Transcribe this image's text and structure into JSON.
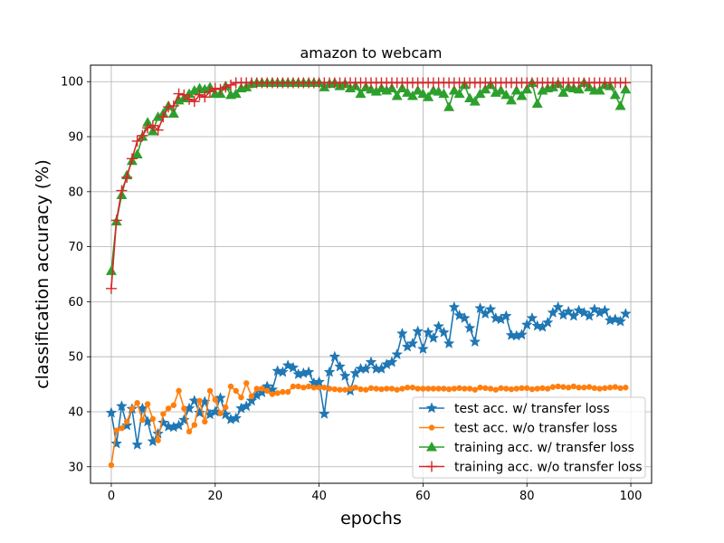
{
  "chart_data": {
    "type": "line",
    "title": "amazon to webcam",
    "xlabel": "epochs",
    "ylabel": "classification accuracy (%)",
    "xlim": [
      -4,
      104
    ],
    "ylim": [
      27,
      103
    ],
    "xticks": [
      0,
      20,
      40,
      60,
      80,
      100
    ],
    "yticks": [
      30,
      40,
      50,
      60,
      70,
      80,
      90,
      100
    ],
    "grid": true,
    "legend_position": "lower-right",
    "series": [
      {
        "name": "test acc. w/ transfer loss",
        "color": "#1f77b4",
        "marker": "star",
        "values": [
          39.8,
          34.2,
          41.0,
          37.5,
          40.5,
          34.0,
          40.6,
          38.2,
          34.6,
          36.0,
          38.0,
          37.3,
          37.2,
          37.5,
          38.5,
          40.6,
          42.0,
          39.8,
          41.8,
          39.5,
          40.0,
          42.5,
          39.5,
          38.6,
          38.8,
          40.6,
          41.0,
          42.0,
          43.0,
          43.5,
          44.6,
          44.0,
          47.4,
          47.2,
          48.4,
          48.0,
          46.8,
          47.0,
          47.2,
          45.2,
          45.4,
          39.6,
          47.2,
          50.0,
          48.2,
          46.5,
          43.8,
          47.0,
          47.8,
          47.8,
          49.0,
          47.8,
          47.8,
          48.6,
          49.0,
          50.4,
          54.2,
          51.8,
          52.4,
          54.6,
          51.4,
          54.4,
          53.4,
          55.5,
          54.4,
          52.4,
          59.0,
          57.5,
          57.0,
          55.2,
          52.7,
          58.8,
          57.8,
          58.6,
          57.0,
          56.8,
          57.4,
          53.9,
          53.8,
          54.0,
          55.8,
          57.0,
          55.6,
          55.4,
          56.2,
          58.0,
          59.0,
          57.6,
          58.2,
          57.4,
          58.4,
          58.0,
          57.4,
          58.6,
          58.0,
          58.4,
          56.6,
          56.8,
          56.4,
          57.8
        ]
      },
      {
        "name": "test acc. w/o transfer loss",
        "color": "#ff7f0e",
        "marker": "circle",
        "values": [
          30.3,
          36.6,
          37.0,
          38.2,
          40.6,
          41.6,
          38.5,
          41.4,
          38.7,
          34.8,
          39.6,
          40.6,
          41.2,
          43.8,
          40.6,
          36.4,
          37.6,
          42.0,
          38.2,
          43.8,
          42.2,
          39.7,
          40.8,
          44.6,
          43.8,
          42.6,
          45.2,
          42.8,
          44.2,
          44.2,
          43.8,
          43.2,
          43.4,
          43.6,
          43.6,
          44.6,
          44.6,
          44.4,
          44.6,
          44.4,
          44.4,
          44.4,
          44.2,
          44.1,
          44.0,
          44.0,
          44.2,
          44.4,
          44.1,
          44.0,
          44.3,
          44.2,
          44.1,
          44.2,
          44.2,
          44.0,
          44.2,
          44.4,
          44.4,
          44.2,
          44.2,
          44.2,
          44.2,
          44.2,
          44.2,
          44.1,
          44.2,
          44.3,
          44.2,
          44.2,
          44.0,
          44.4,
          44.3,
          44.2,
          44.0,
          44.3,
          44.2,
          44.1,
          44.2,
          44.3,
          44.3,
          44.1,
          44.2,
          44.3,
          44.2,
          44.5,
          44.6,
          44.5,
          44.4,
          44.6,
          44.4,
          44.4,
          44.5,
          44.3,
          44.2,
          44.3,
          44.4,
          44.5,
          44.3,
          44.4
        ]
      },
      {
        "name": "training acc. w/ transfer loss",
        "color": "#2ca02c",
        "marker": "triangle",
        "values": [
          65.6,
          74.6,
          79.4,
          83.0,
          85.6,
          86.8,
          90.0,
          92.6,
          91.0,
          93.6,
          94.2,
          95.6,
          94.2,
          96.6,
          97.0,
          97.8,
          98.4,
          98.8,
          98.6,
          99.0,
          97.8,
          97.8,
          99.2,
          97.6,
          97.8,
          98.8,
          99.0,
          99.6,
          99.8,
          99.8,
          99.8,
          99.8,
          99.8,
          99.8,
          99.8,
          99.8,
          99.8,
          99.8,
          99.8,
          99.8,
          99.8,
          99.0,
          99.6,
          99.8,
          99.2,
          99.6,
          98.8,
          99.2,
          97.8,
          99.0,
          98.6,
          98.2,
          98.8,
          98.4,
          98.8,
          97.4,
          98.8,
          98.0,
          97.4,
          98.4,
          97.8,
          97.2,
          98.4,
          98.2,
          97.8,
          95.4,
          98.4,
          97.8,
          99.4,
          97.0,
          96.4,
          97.8,
          98.6,
          99.4,
          98.0,
          98.4,
          97.6,
          96.6,
          98.4,
          97.4,
          98.6,
          99.8,
          96.0,
          98.4,
          98.8,
          99.0,
          99.6,
          98.0,
          99.0,
          98.8,
          98.6,
          99.8,
          99.0,
          98.4,
          98.4,
          99.4,
          99.2,
          97.6,
          95.6,
          98.6
        ]
      },
      {
        "name": "training acc. w/o transfer loss",
        "color": "#d62728",
        "marker": "plus",
        "values": [
          62.4,
          74.8,
          80.2,
          82.6,
          86.0,
          89.2,
          90.2,
          91.6,
          92.0,
          91.2,
          93.6,
          95.4,
          95.6,
          97.8,
          97.6,
          96.8,
          96.4,
          97.6,
          97.2,
          98.2,
          98.8,
          98.6,
          99.0,
          99.4,
          99.8,
          99.8,
          99.8,
          99.8,
          99.8,
          99.8,
          99.8,
          99.8,
          99.8,
          99.8,
          99.8,
          99.8,
          99.8,
          99.8,
          99.8,
          99.8,
          99.8,
          99.8,
          99.8,
          99.8,
          99.8,
          99.8,
          99.8,
          99.8,
          99.8,
          99.8,
          99.8,
          99.8,
          99.8,
          99.8,
          99.8,
          99.8,
          99.8,
          99.8,
          99.8,
          99.8,
          99.8,
          99.8,
          99.8,
          99.8,
          99.8,
          99.8,
          99.8,
          99.8,
          99.8,
          99.8,
          99.8,
          99.8,
          99.8,
          99.8,
          99.8,
          99.8,
          99.8,
          99.8,
          99.8,
          99.8,
          99.8,
          99.8,
          99.8,
          99.8,
          99.8,
          99.8,
          99.8,
          99.8,
          99.8,
          99.8,
          99.8,
          99.8,
          99.8,
          99.8,
          99.8,
          99.8,
          99.8,
          99.8,
          99.8,
          99.8
        ]
      }
    ]
  }
}
